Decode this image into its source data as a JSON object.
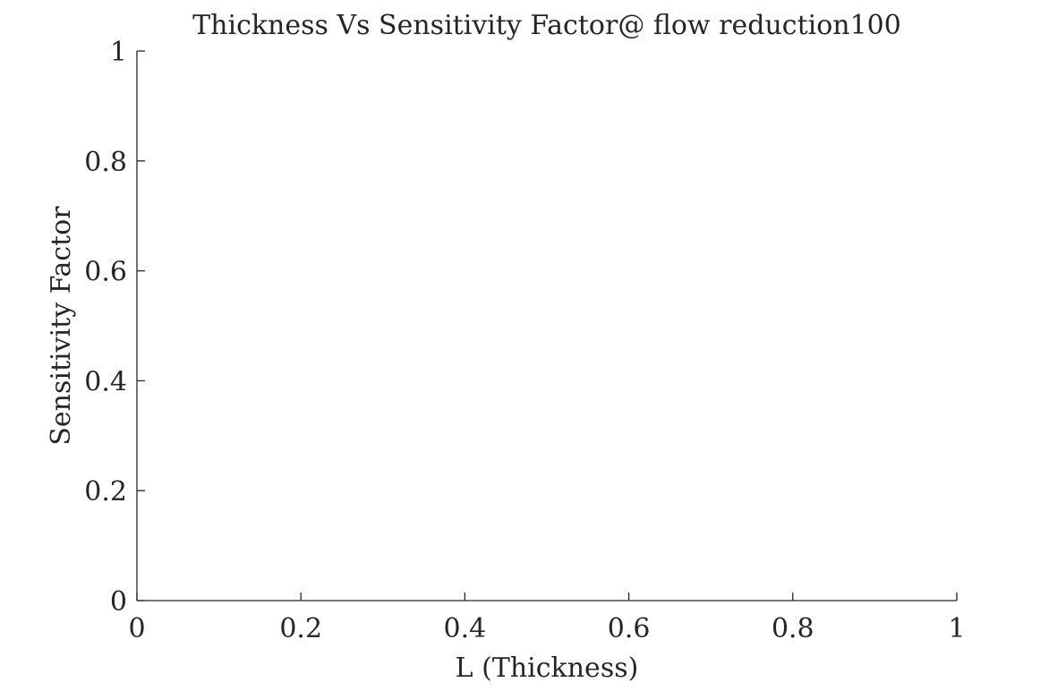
{
  "chart_data": {
    "type": "line",
    "title": "Thickness Vs Sensitivity Factor@ flow reduction100",
    "xlabel": "L (Thickness)",
    "ylabel": "Sensitivity Factor",
    "xlim": [
      0,
      1
    ],
    "ylim": [
      0,
      1
    ],
    "xticks": [
      0,
      0.2,
      0.4,
      0.6,
      0.8,
      1
    ],
    "yticks": [
      0,
      0.2,
      0.4,
      0.6,
      0.8,
      1
    ],
    "xtick_labels": [
      "0",
      "0.2",
      "0.4",
      "0.6",
      "0.8",
      "1"
    ],
    "ytick_labels": [
      "0",
      "0.2",
      "0.4",
      "0.6",
      "0.8",
      "1"
    ],
    "grid": false,
    "series": []
  }
}
